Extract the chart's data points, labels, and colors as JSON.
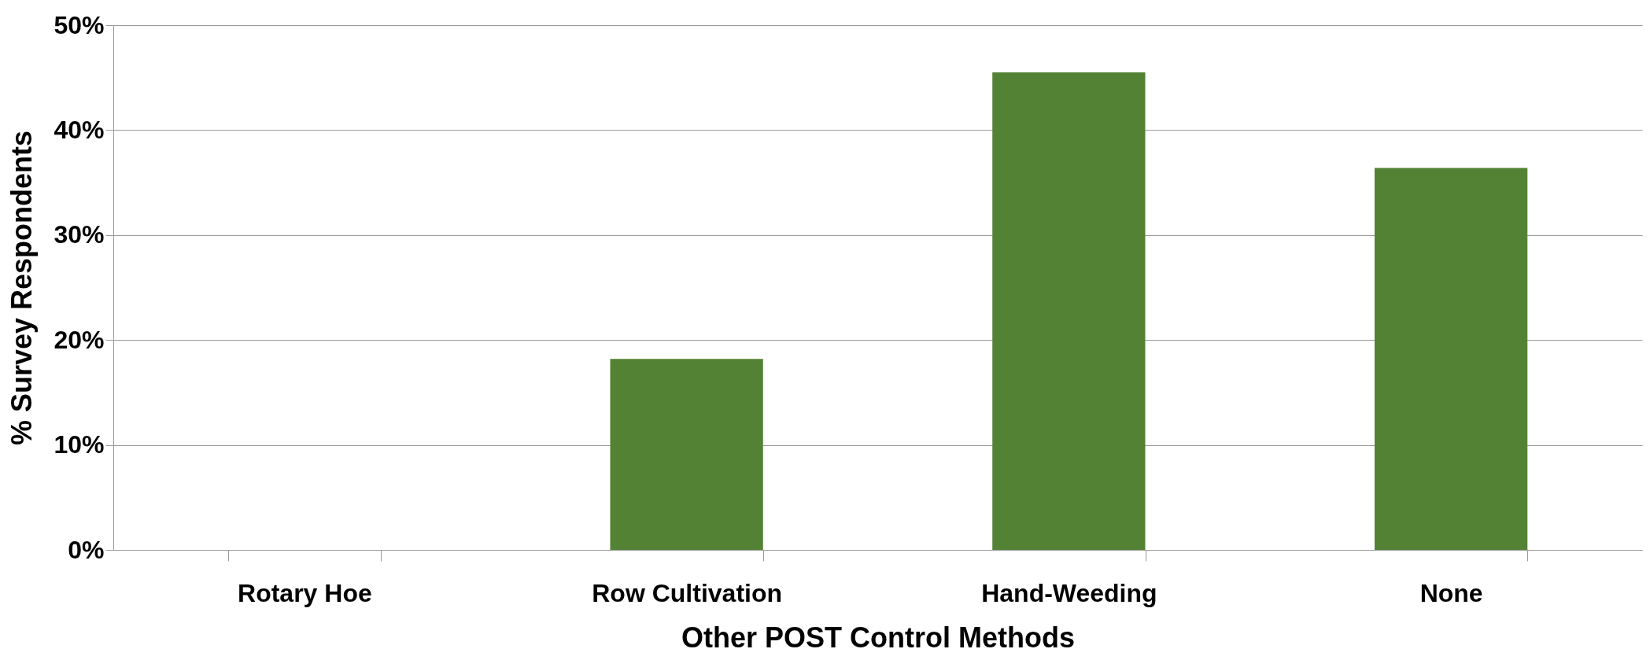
{
  "chart_data": {
    "type": "bar",
    "xlabel": "Other POST Control Methods",
    "ylabel": "% Survey Respondents",
    "categories": [
      "Rotary Hoe",
      "Row Cultivation",
      "Hand-Weeding",
      "None"
    ],
    "values": [
      0,
      18.2,
      45.5,
      36.4
    ],
    "color": "#548235",
    "ylim": [
      0,
      50
    ],
    "yticks": [
      {
        "value": 0,
        "label": "0%"
      },
      {
        "value": 10,
        "label": "10%"
      },
      {
        "value": 20,
        "label": "20%"
      },
      {
        "value": 30,
        "label": "30%"
      },
      {
        "value": 40,
        "label": "40%"
      },
      {
        "value": 50,
        "label": "50%"
      }
    ],
    "grid": "y"
  }
}
